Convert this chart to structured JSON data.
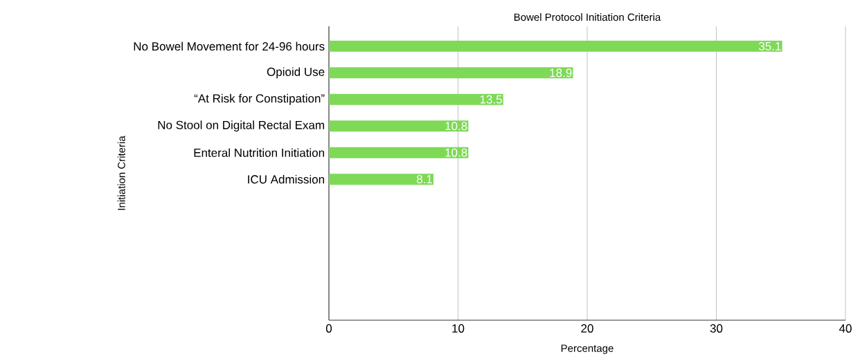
{
  "chart_data": {
    "type": "bar",
    "orientation": "horizontal",
    "title": "Bowel Protocol Initiation Criteria",
    "xlabel": "Percentage",
    "ylabel": "Initiation Criteria",
    "categories": [
      "No Bowel Movement for 24-96 hours",
      "Opioid Use",
      "“At Risk for Constipation”",
      "No Stool on Digital Rectal Exam",
      "Enteral Nutrition Initiation",
      "ICU Admission",
      null,
      null,
      null,
      null,
      null
    ],
    "values": [
      35.1,
      18.9,
      13.5,
      10.8,
      10.8,
      8.1,
      null,
      null,
      null,
      null,
      null
    ],
    "color": "#7ed957",
    "data_labels": true,
    "grid": "x",
    "xlim": [
      0,
      40
    ],
    "xticks": [
      0,
      10,
      20,
      30,
      40
    ]
  }
}
